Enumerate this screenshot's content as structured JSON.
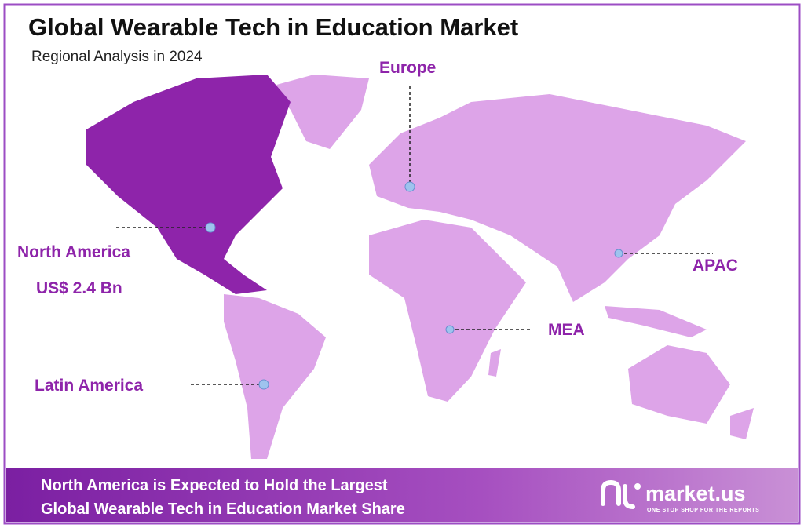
{
  "header": {
    "title": "Global Wearable Tech in Education Market",
    "subtitle": "Regional Analysis in 2024"
  },
  "regions": [
    {
      "label": "North America",
      "value": "US$ 2.4 Bn"
    },
    {
      "label": "Europe"
    },
    {
      "label": "APAC"
    },
    {
      "label": "MEA"
    },
    {
      "label": "Latin America"
    }
  ],
  "footer": {
    "lines": [
      "North America is Expected to Hold the Largest",
      "Global Wearable Tech in Education Market  Share"
    ],
    "brand": "market.us",
    "tagline": "ONE STOP SHOP FOR THE REPORTS"
  }
}
